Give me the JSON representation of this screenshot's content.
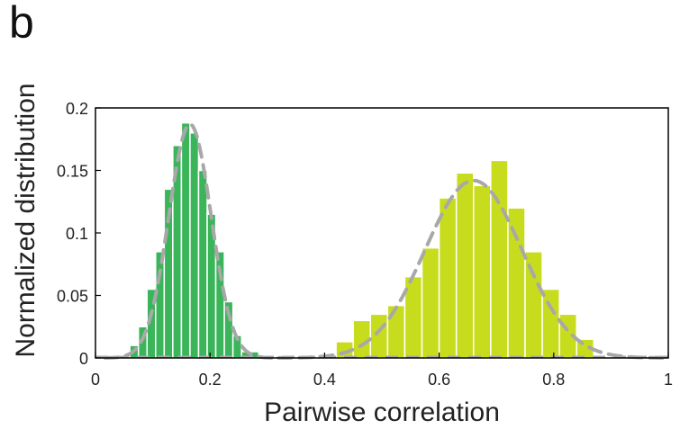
{
  "panel_label": "b",
  "chart_data": {
    "type": "bar",
    "title": "",
    "xlabel": "Pairwise correlation",
    "ylabel": "Normalized distribution",
    "xlim": [
      0,
      1
    ],
    "ylim": [
      0,
      0.2
    ],
    "xticks": [
      0,
      0.2,
      0.4,
      0.6,
      0.8,
      1
    ],
    "xtick_labels": [
      "0",
      "0.2",
      "0.4",
      "0.6",
      "0.8",
      "1"
    ],
    "yticks": [
      0,
      0.05,
      0.1,
      0.15,
      0.2
    ],
    "ytick_labels": [
      "0",
      "0.05",
      "0.1",
      "0.15",
      "0.2"
    ],
    "grid": false,
    "legend": "none",
    "bin_width": 0.03,
    "series": [
      {
        "color": "#3bb55a",
        "bin_starts": [
          0.03,
          0.06,
          0.075,
          0.09,
          0.105,
          0.12,
          0.135,
          0.15,
          0.165,
          0.18,
          0.195,
          0.21,
          0.225,
          0.24,
          0.255
        ],
        "values": [
          0.002,
          0.01,
          0.025,
          0.055,
          0.085,
          0.135,
          0.17,
          0.188,
          0.18,
          0.15,
          0.115,
          0.085,
          0.045,
          0.018,
          0.005
        ],
        "fit": "gaussian",
        "fit_mean": 0.165,
        "fit_sd": 0.037,
        "fit_peak": 0.187
      },
      {
        "color": "#c8dc1e",
        "bin_starts": [
          0.42,
          0.45,
          0.48,
          0.51,
          0.54,
          0.57,
          0.6,
          0.63,
          0.66,
          0.69,
          0.72,
          0.75,
          0.78,
          0.81,
          0.84
        ],
        "values": [
          0.013,
          0.03,
          0.035,
          0.042,
          0.065,
          0.088,
          0.128,
          0.148,
          0.138,
          0.158,
          0.12,
          0.085,
          0.055,
          0.035,
          0.015
        ],
        "fit": "gaussian",
        "fit_mean": 0.66,
        "fit_sd": 0.085,
        "fit_peak": 0.142
      }
    ]
  }
}
